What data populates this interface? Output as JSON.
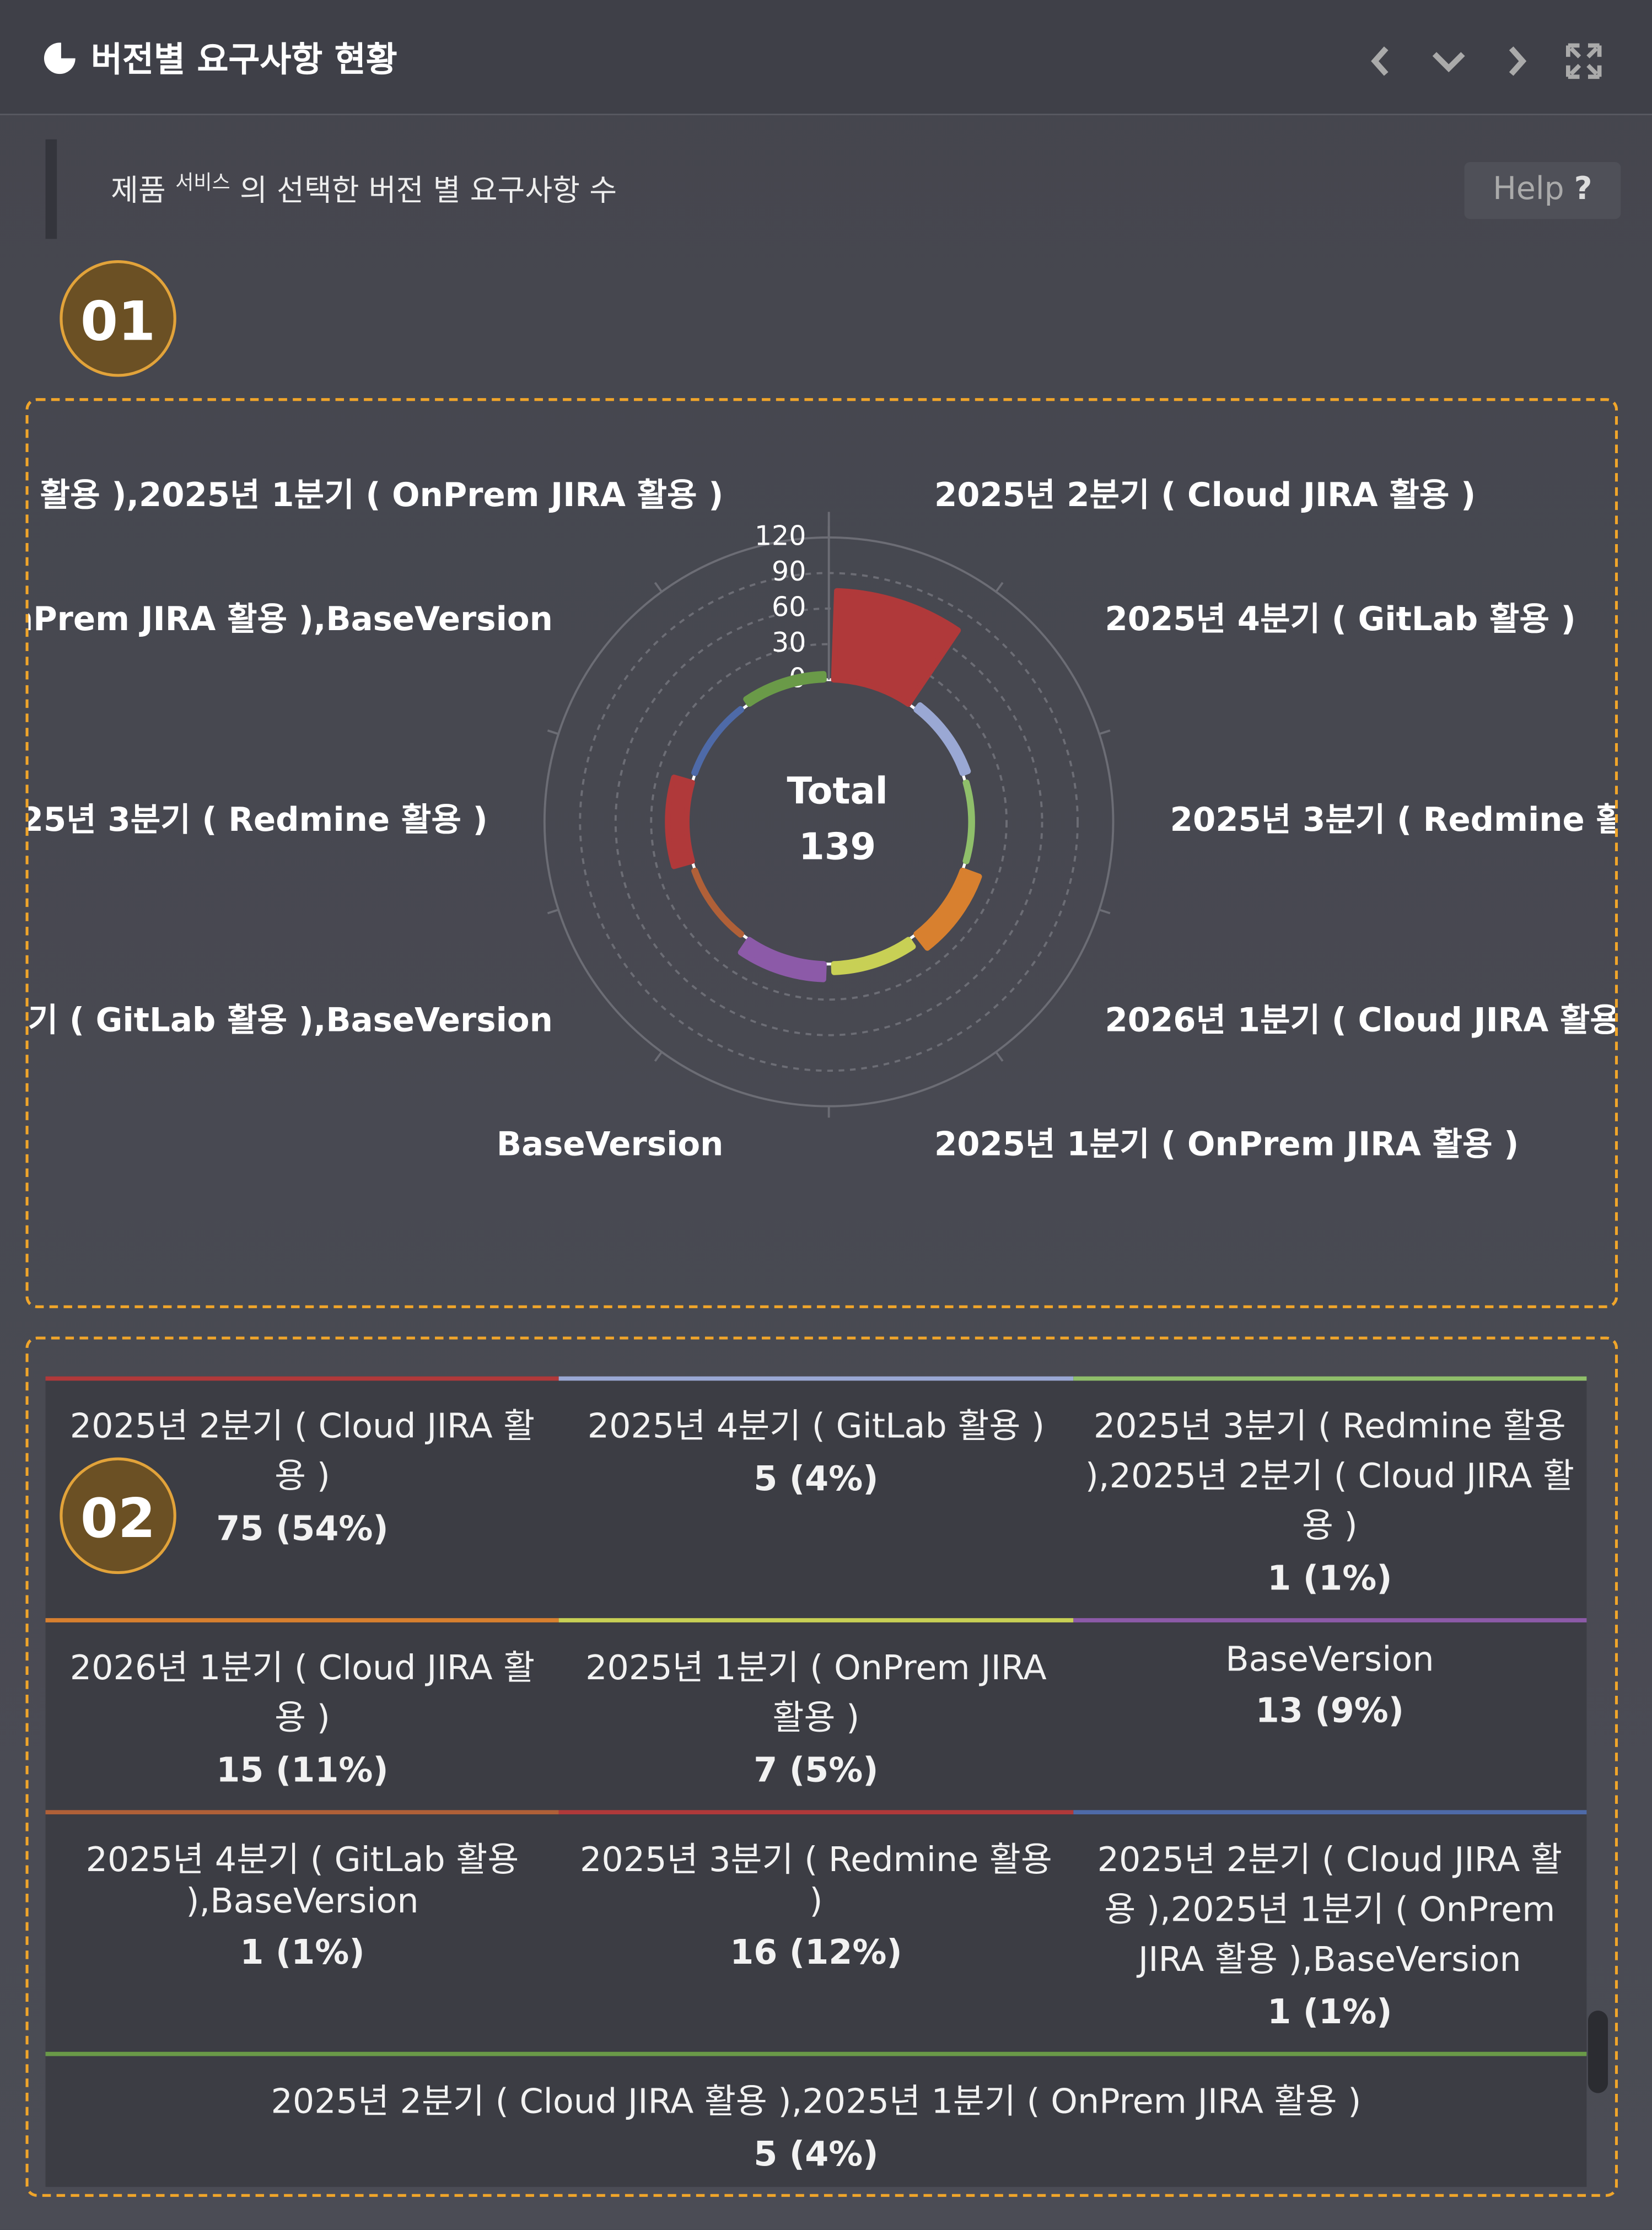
{
  "header": {
    "title": "버전별 요구사항 현황"
  },
  "description": {
    "text_before": "제품",
    "superscript": "서비스",
    "text_after": "의 선택한 버전 별 요구사항 수",
    "help": "Help",
    "help_icon": "?"
  },
  "annotations": [
    "01",
    "02"
  ],
  "chart_data": {
    "type": "polar_bar",
    "center_label": "Total",
    "total": 139,
    "categories": [
      "2025년 2분기 ( Cloud JIRA 활용 )",
      "2025년 4분기 ( GitLab 활용 )",
      "2025년 3분기 ( Redmine 활용 ),2025년 2분기 ( Cloud JIRA 활용 )",
      "2026년 1분기 ( Cloud JIRA 활용 )",
      "2025년 1분기 ( OnPrem JIRA 활용 )",
      "BaseVersion",
      "2025년 4분기 ( GitLab 활용 ),BaseVersion",
      "2025년 3분기 ( Redmine 활용 )",
      "2025년 2분기 ( Cloud JIRA 활용 ),2025년 1분기 ( OnPrem JIRA 활용 ),BaseVersion",
      "2025년 2분기 ( Cloud JIRA 활용 ),2025년 1분기 ( OnPrem JIRA 활용 )"
    ],
    "values": [
      75,
      5,
      1,
      15,
      7,
      13,
      1,
      16,
      1,
      5
    ],
    "value_labels": [
      "75 (54%)",
      "5 (4%)",
      "1 (1%)",
      "15 (11%)",
      "7 (5%)",
      "13 (9%)",
      "1 (1%)",
      "16 (12%)",
      "1 (1%)",
      "5 (4%)"
    ],
    "colors": [
      "#b0393a",
      "#9aa8d4",
      "#8fbf6a",
      "#d8802f",
      "#c8d055",
      "#8c5aa8",
      "#b06038",
      "#b0393a",
      "#4e6aa8",
      "#6a9a48"
    ],
    "rlim": [
      0,
      120
    ],
    "rticks": [
      0,
      30,
      60,
      90,
      120
    ],
    "grid": true
  }
}
